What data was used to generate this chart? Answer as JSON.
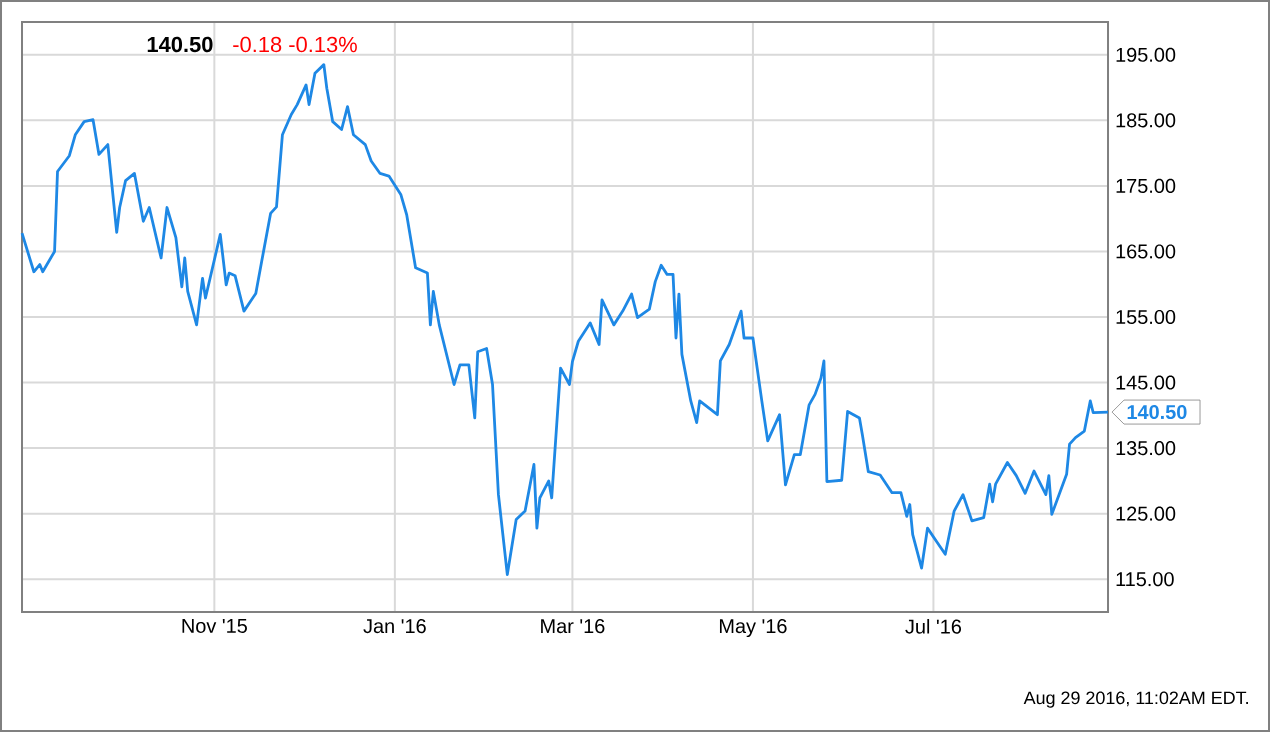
{
  "chart_data": {
    "type": "line",
    "title": "140.50",
    "subtitle": "-0.18  -0.13%",
    "annotations": [
      "Aug 29 2016, 11:02AM EDT.",
      {
        "text": "140.50",
        "x": "2016-08-29",
        "y": 140.5
      }
    ],
    "xlim": [
      "2015-08-28",
      "2016-08-29"
    ],
    "xticks": [
      {
        "value": "2015-11-01",
        "label": "Nov '15"
      },
      {
        "value": "2016-01-01",
        "label": "Jan '16"
      },
      {
        "value": "2016-03-01",
        "label": "Mar '16"
      },
      {
        "value": "2016-05-01",
        "label": "May '16"
      },
      {
        "value": "2016-07-01",
        "label": "Jul '16"
      }
    ],
    "ylim": [
      110,
      200
    ],
    "yticks": [
      {
        "value": 115,
        "label": "115.00"
      },
      {
        "value": 125,
        "label": "125.00"
      },
      {
        "value": 135,
        "label": "135.00"
      },
      {
        "value": 145,
        "label": "145.00"
      },
      {
        "value": 155,
        "label": "155.00"
      },
      {
        "value": 165,
        "label": "165.00"
      },
      {
        "value": 175,
        "label": "175.00"
      },
      {
        "value": 185,
        "label": "185.00"
      },
      {
        "value": 195,
        "label": "195.00"
      }
    ],
    "grid": true,
    "marker": "none",
    "line_style": "solid",
    "series": [
      {
        "color": "#1e88e5",
        "x": [
          "2015-08-28",
          "2015-09-01",
          "2015-09-03",
          "2015-09-04",
          "2015-09-08",
          "2015-09-09",
          "2015-09-13",
          "2015-09-15",
          "2015-09-18",
          "2015-09-21",
          "2015-09-23",
          "2015-09-26",
          "2015-09-29",
          "2015-09-30",
          "2015-10-02",
          "2015-10-05",
          "2015-10-08",
          "2015-10-10",
          "2015-10-14",
          "2015-10-16",
          "2015-10-19",
          "2015-10-21",
          "2015-10-22",
          "2015-10-23",
          "2015-10-26",
          "2015-10-28",
          "2015-10-29",
          "2015-11-03",
          "2015-11-05",
          "2015-11-06",
          "2015-11-08",
          "2015-11-11",
          "2015-11-15",
          "2015-11-17",
          "2015-11-20",
          "2015-11-22",
          "2015-11-24",
          "2015-11-27",
          "2015-11-29",
          "2015-12-02",
          "2015-12-03",
          "2015-12-05",
          "2015-12-08",
          "2015-12-09",
          "2015-12-11",
          "2015-12-14",
          "2015-12-16",
          "2015-12-18",
          "2015-12-22",
          "2015-12-24",
          "2015-12-27",
          "2015-12-30",
          "2016-01-03",
          "2016-01-05",
          "2016-01-08",
          "2016-01-12",
          "2016-01-13",
          "2016-01-14",
          "2016-01-16",
          "2016-01-21",
          "2016-01-23",
          "2016-01-26",
          "2016-01-28",
          "2016-01-29",
          "2016-02-01",
          "2016-02-03",
          "2016-02-05",
          "2016-02-08",
          "2016-02-11",
          "2016-02-14",
          "2016-02-17",
          "2016-02-18",
          "2016-02-19",
          "2016-02-22",
          "2016-02-23",
          "2016-02-26",
          "2016-02-29",
          "2016-03-01",
          "2016-03-03",
          "2016-03-07",
          "2016-03-10",
          "2016-03-11",
          "2016-03-15",
          "2016-03-18",
          "2016-03-21",
          "2016-03-23",
          "2016-03-27",
          "2016-03-29",
          "2016-03-31",
          "2016-04-02",
          "2016-04-04",
          "2016-04-05",
          "2016-04-06",
          "2016-04-07",
          "2016-04-10",
          "2016-04-12",
          "2016-04-13",
          "2016-04-19",
          "2016-04-20",
          "2016-04-23",
          "2016-04-27",
          "2016-04-28",
          "2016-05-01",
          "2016-05-04",
          "2016-05-06",
          "2016-05-10",
          "2016-05-12",
          "2016-05-15",
          "2016-05-17",
          "2016-05-20",
          "2016-05-22",
          "2016-05-24",
          "2016-05-25",
          "2016-05-26",
          "2016-05-31",
          "2016-06-02",
          "2016-06-06",
          "2016-06-07",
          "2016-06-09",
          "2016-06-13",
          "2016-06-17",
          "2016-06-20",
          "2016-06-22",
          "2016-06-23",
          "2016-06-24",
          "2016-06-27",
          "2016-06-29",
          "2016-07-02",
          "2016-07-05",
          "2016-07-08",
          "2016-07-11",
          "2016-07-14",
          "2016-07-18",
          "2016-07-20",
          "2016-07-21",
          "2016-07-22",
          "2016-07-26",
          "2016-07-29",
          "2016-08-01",
          "2016-08-04",
          "2016-08-08",
          "2016-08-09",
          "2016-08-10",
          "2016-08-15",
          "2016-08-16",
          "2016-08-18",
          "2016-08-21",
          "2016-08-23",
          "2016-08-24",
          "2016-08-29"
        ],
        "values": [
          167.8,
          161.9,
          163.0,
          161.9,
          165.0,
          177.2,
          179.6,
          182.8,
          184.8,
          185.1,
          179.8,
          181.3,
          167.9,
          171.7,
          175.8,
          176.9,
          169.6,
          171.7,
          164.0,
          171.7,
          167.1,
          159.6,
          164.0,
          158.9,
          153.8,
          160.9,
          157.9,
          167.6,
          159.9,
          161.7,
          161.3,
          155.9,
          158.6,
          163.5,
          170.8,
          171.8,
          182.8,
          185.9,
          187.4,
          190.4,
          187.4,
          192.2,
          193.5,
          189.9,
          184.8,
          183.6,
          187.1,
          182.8,
          181.3,
          178.8,
          176.9,
          176.5,
          173.7,
          170.6,
          162.5,
          161.7,
          153.8,
          158.9,
          153.8,
          144.7,
          147.7,
          147.7,
          139.6,
          149.7,
          150.2,
          144.7,
          127.9,
          115.7,
          124.1,
          125.4,
          132.5,
          122.8,
          127.4,
          130.0,
          127.4,
          147.2,
          144.7,
          148.2,
          151.3,
          154.1,
          150.8,
          157.6,
          153.8,
          155.9,
          158.5,
          154.9,
          156.2,
          160.4,
          162.9,
          161.5,
          161.5,
          151.8,
          158.5,
          149.3,
          142.2,
          138.9,
          142.2,
          140.1,
          148.3,
          150.8,
          155.9,
          151.8,
          151.8,
          142.2,
          136.1,
          140.1,
          129.4,
          134.0,
          134.0,
          141.6,
          143.2,
          145.7,
          148.3,
          129.9,
          130.1,
          140.6,
          139.6,
          137.0,
          131.4,
          130.9,
          128.2,
          128.2,
          124.6,
          126.4,
          121.8,
          116.7,
          122.8,
          120.8,
          118.8,
          125.4,
          127.9,
          123.9,
          124.4,
          129.5,
          126.8,
          129.5,
          132.8,
          130.8,
          128.1,
          131.5,
          127.9,
          130.8,
          124.9,
          131.0,
          135.6,
          136.6,
          137.6,
          142.2,
          140.4,
          140.5
        ]
      }
    ]
  }
}
